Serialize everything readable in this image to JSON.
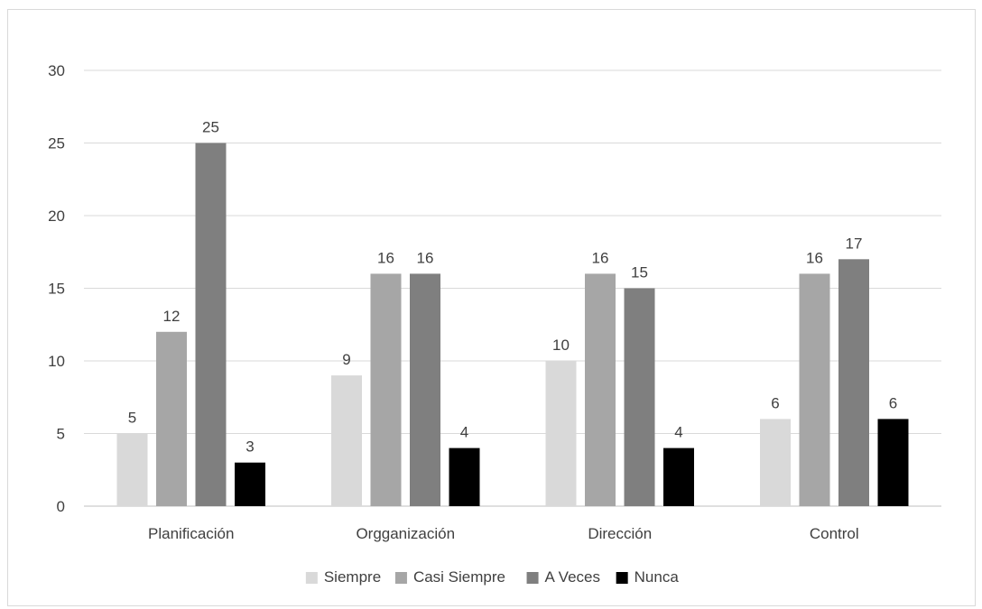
{
  "chart_data": {
    "type": "bar",
    "title": "",
    "xlabel": "",
    "ylabel": "",
    "ylim": [
      0,
      30
    ],
    "y_ticks": [
      0,
      5,
      10,
      15,
      20,
      25,
      30
    ],
    "grid": true,
    "legend_position": "bottom",
    "categories": [
      "Planificación",
      "Orgganización",
      "Dirección",
      "Control"
    ],
    "series": [
      {
        "name": "Siempre",
        "color": "#d9d9d9",
        "values": [
          5,
          9,
          10,
          6
        ]
      },
      {
        "name": "Casi Siempre",
        "color": "#a6a6a6",
        "values": [
          12,
          16,
          16,
          16
        ]
      },
      {
        "name": "A Veces",
        "color": "#7f7f7f",
        "values": [
          25,
          16,
          15,
          17
        ]
      },
      {
        "name": "Nunca",
        "color": "#000000",
        "values": [
          3,
          4,
          4,
          6
        ]
      }
    ]
  }
}
